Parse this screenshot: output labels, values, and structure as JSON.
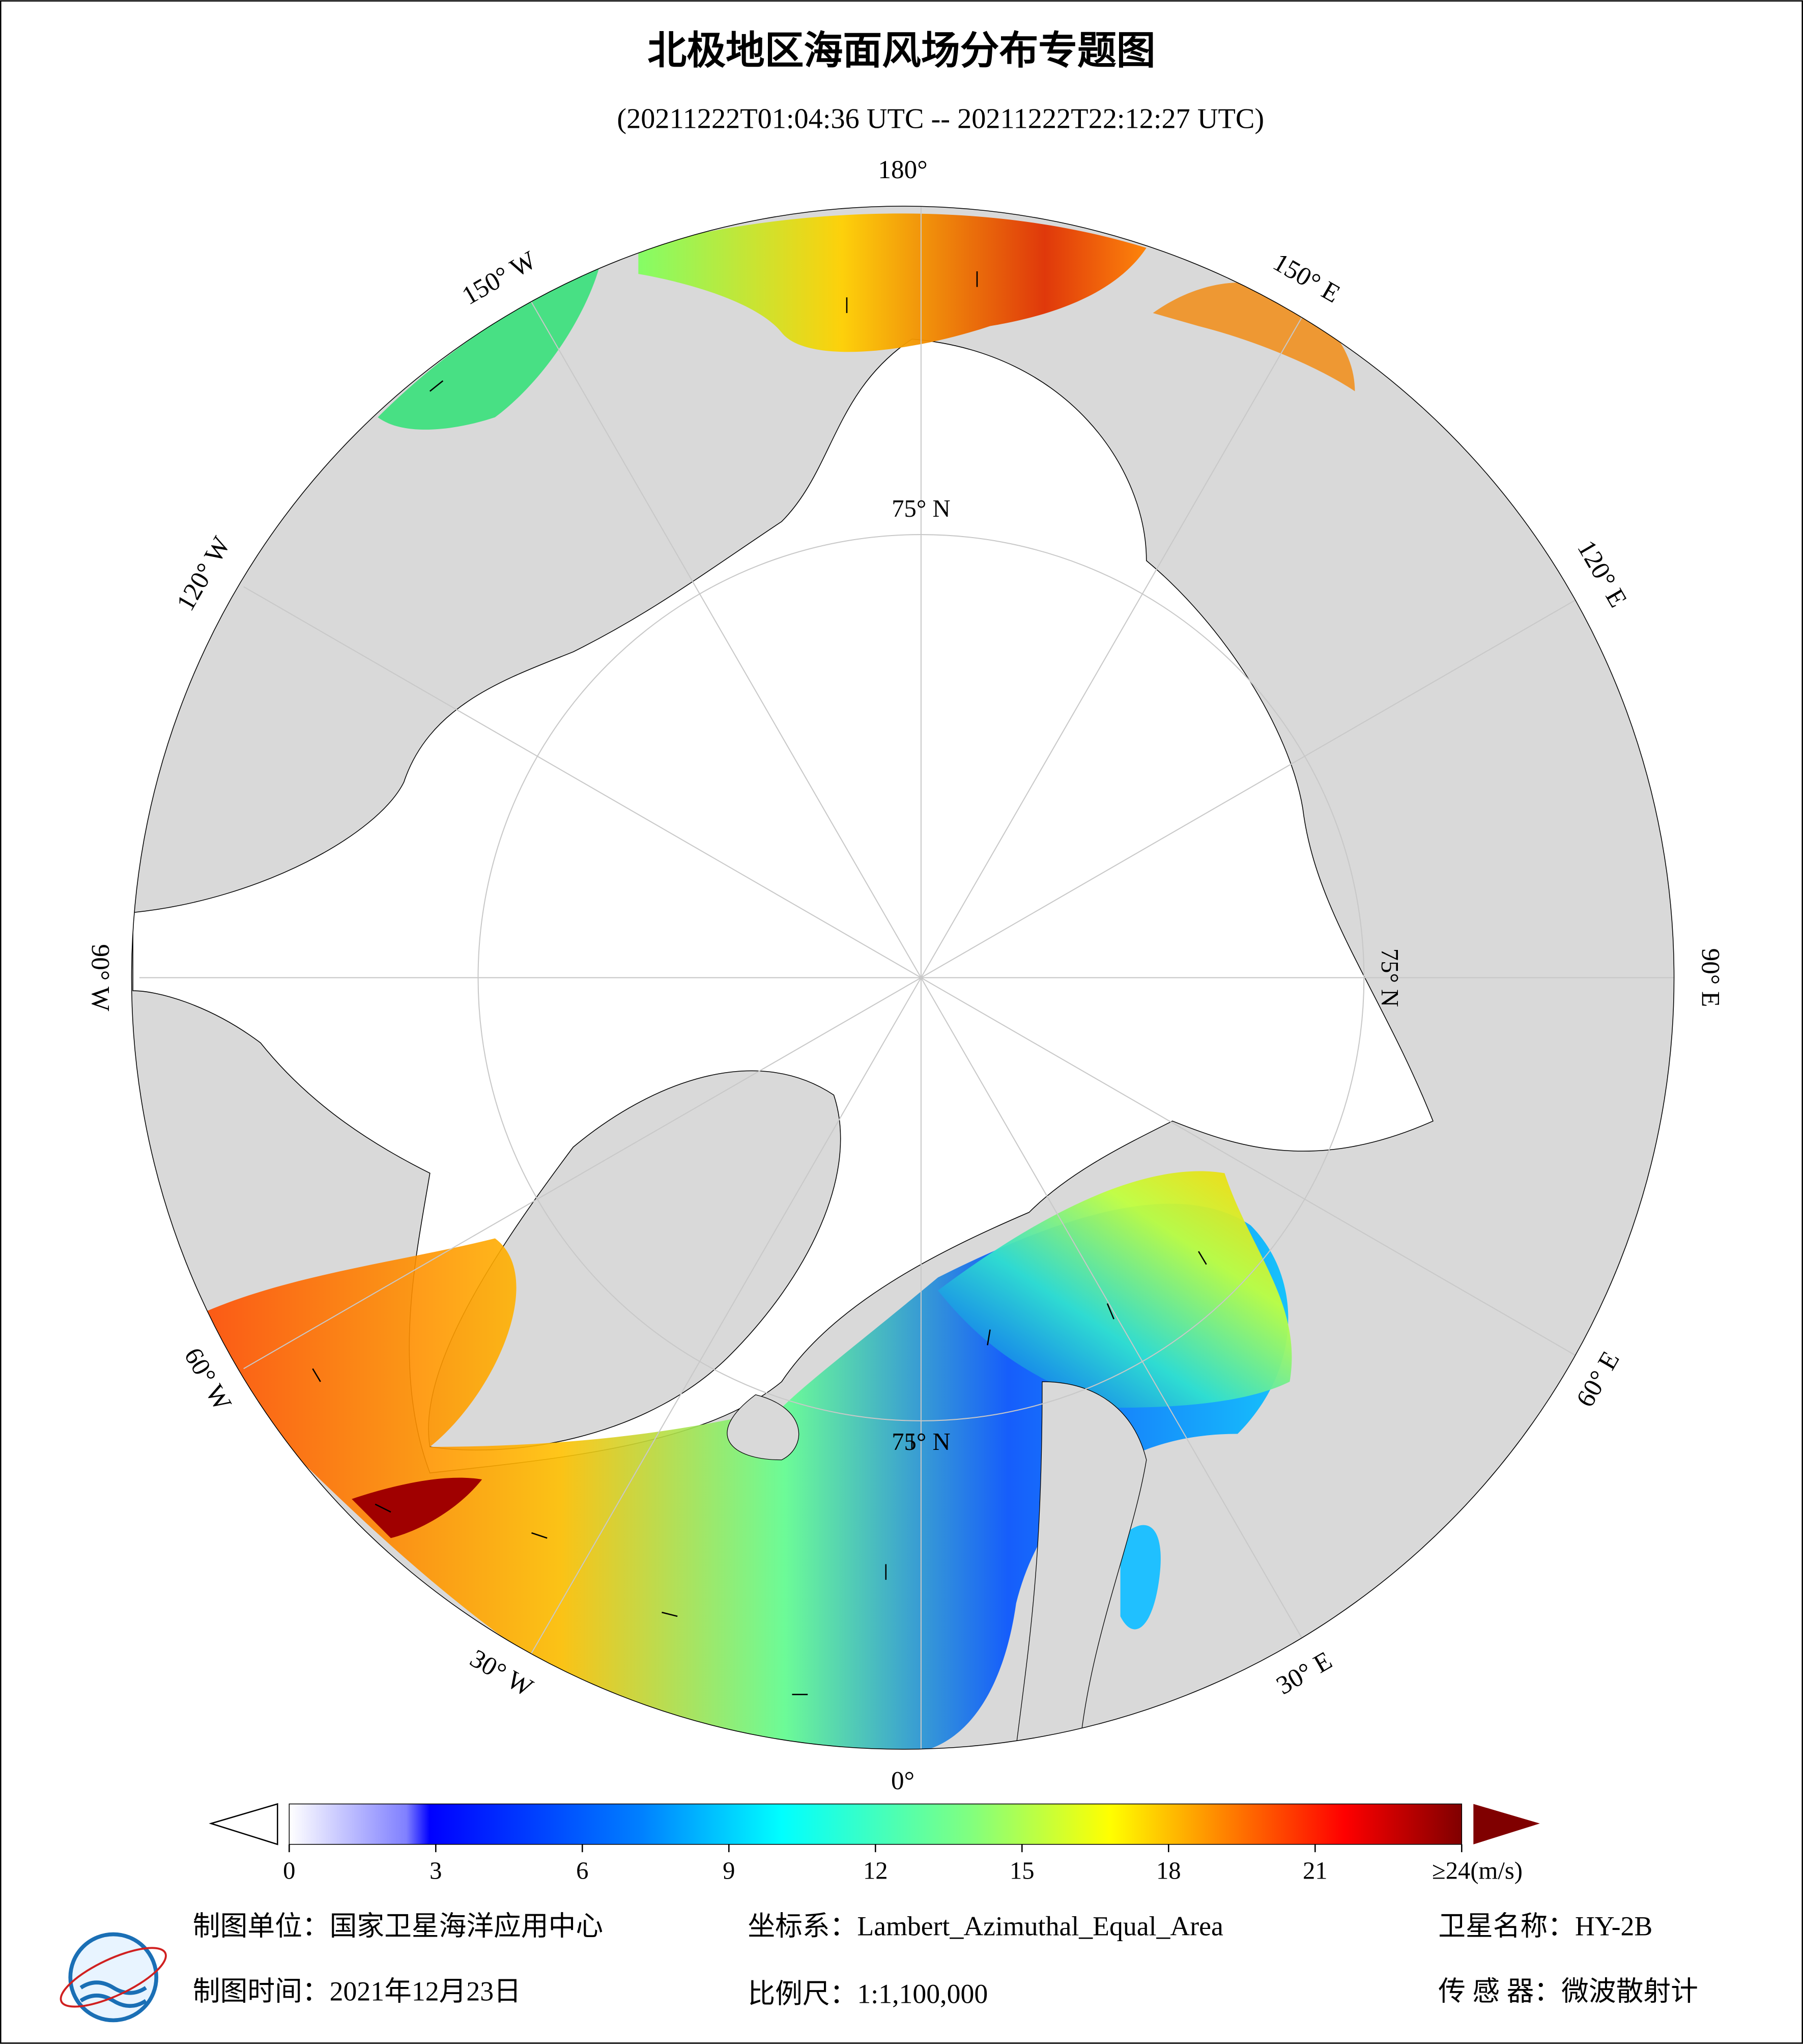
{
  "header": {
    "title": "北极地区海面风场分布专题图",
    "subtitle": "(20211222T01:04:36 UTC -- 20211222T22:12:27 UTC)"
  },
  "map": {
    "lon_labels": [
      {
        "lon": 180,
        "label": "180°"
      },
      {
        "lon": 150,
        "label": "150° E"
      },
      {
        "lon": 120,
        "label": "120° E"
      },
      {
        "lon": 90,
        "label": "90° E"
      },
      {
        "lon": 60,
        "label": "60° E"
      },
      {
        "lon": 30,
        "label": "30° E"
      },
      {
        "lon": 0,
        "label": "0°"
      },
      {
        "lon": -30,
        "label": "30° W"
      },
      {
        "lon": -60,
        "label": "60° W"
      },
      {
        "lon": -90,
        "label": "90° W"
      },
      {
        "lon": -120,
        "label": "120° W"
      },
      {
        "lon": -150,
        "label": "150° W"
      }
    ],
    "lat_labels": [
      {
        "lon": 180,
        "label": "75° N"
      },
      {
        "lon": 90,
        "label": "75° N"
      },
      {
        "lon": 0,
        "label": "75° N"
      }
    ]
  },
  "colorbar": {
    "lim": [
      0,
      24
    ],
    "ticks": [
      0,
      3,
      6,
      9,
      12,
      15,
      18,
      21,
      {
        "value": 24,
        "label": "≥24(m/s)"
      }
    ]
  },
  "footer": {
    "unit": "制图单位：国家卫星海洋应用中心",
    "crs": "坐标系：Lambert_Azimuthal_Equal_Area",
    "satellite": "卫星名称：HY-2B",
    "date": "制图时间：2021年12月23日",
    "scale": "比例尺：1:1,100,000",
    "sensor": "传 感 器：微波散射计"
  }
}
